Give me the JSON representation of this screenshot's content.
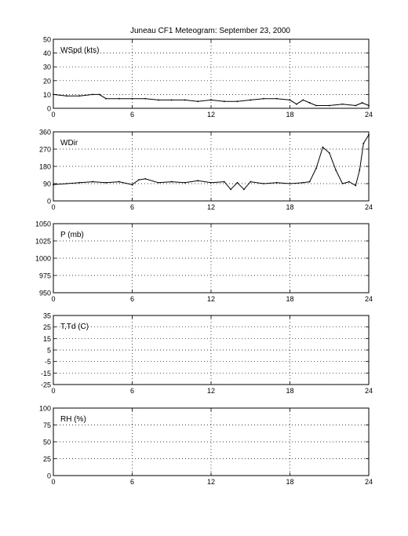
{
  "title": "Juneau CF1 Meteogram: September 23, 2000",
  "chart_data": [
    {
      "type": "line",
      "label": "WSpd (kts)",
      "x_ticks": [
        "0",
        "6",
        "12",
        "18",
        "24"
      ],
      "xlim": [
        0,
        24
      ],
      "y_ticks": [
        "0",
        "10",
        "20",
        "30",
        "40",
        "50"
      ],
      "ylim": [
        0,
        50
      ],
      "grid": true,
      "series": [
        {
          "x": [
            0,
            1,
            2,
            3,
            3.5,
            4,
            5,
            6,
            7,
            8,
            9,
            10,
            11,
            12,
            13,
            14,
            15,
            16,
            17,
            18,
            18.5,
            19,
            19.5,
            20,
            21,
            22,
            23,
            23.5,
            24
          ],
          "y": [
            10,
            9,
            9,
            10,
            10,
            7,
            7,
            7,
            7,
            6,
            6,
            6,
            5,
            6,
            5,
            5,
            6,
            7,
            7,
            6,
            3,
            6,
            4,
            2,
            2,
            3,
            2,
            4,
            2
          ]
        }
      ]
    },
    {
      "type": "line",
      "label": "WDir",
      "x_ticks": [
        "0",
        "6",
        "12",
        "18",
        "24"
      ],
      "xlim": [
        0,
        24
      ],
      "y_ticks": [
        "0",
        "90",
        "180",
        "270",
        "360"
      ],
      "ylim": [
        0,
        360
      ],
      "grid": true,
      "series": [
        {
          "x": [
            0,
            1,
            2,
            3,
            4,
            5,
            6,
            6.5,
            7,
            8,
            9,
            10,
            11,
            12,
            13,
            13.5,
            14,
            14.5,
            15,
            16,
            17,
            18,
            19,
            19.5,
            20,
            20.5,
            21,
            21.5,
            22,
            22.5,
            23,
            23.3,
            23.6,
            24
          ],
          "y": [
            85,
            90,
            95,
            100,
            95,
            100,
            85,
            110,
            115,
            95,
            100,
            95,
            105,
            95,
            100,
            60,
            95,
            60,
            100,
            90,
            95,
            90,
            95,
            100,
            170,
            280,
            250,
            160,
            90,
            100,
            80,
            160,
            300,
            345
          ]
        }
      ]
    },
    {
      "type": "line",
      "label": "P (mb)",
      "x_ticks": [
        "0",
        "6",
        "12",
        "18",
        "24"
      ],
      "xlim": [
        0,
        24
      ],
      "y_ticks": [
        "950",
        "975",
        "1000",
        "1025",
        "1050"
      ],
      "ylim": [
        950,
        1050
      ],
      "grid": true,
      "series": []
    },
    {
      "type": "line",
      "label": "T,Td (C)",
      "x_ticks": [
        "0",
        "6",
        "12",
        "18",
        "24"
      ],
      "xlim": [
        0,
        24
      ],
      "y_ticks": [
        "-25",
        "-15",
        "-5",
        "5",
        "15",
        "25",
        "35"
      ],
      "ylim": [
        -25,
        35
      ],
      "grid": true,
      "series": []
    },
    {
      "type": "line",
      "label": "RH (%)",
      "x_ticks": [
        "0",
        "6",
        "12",
        "18",
        "24"
      ],
      "xlim": [
        0,
        24
      ],
      "y_ticks": [
        "0",
        "25",
        "50",
        "75",
        "100"
      ],
      "ylim": [
        0,
        100
      ],
      "grid": true,
      "series": []
    }
  ]
}
